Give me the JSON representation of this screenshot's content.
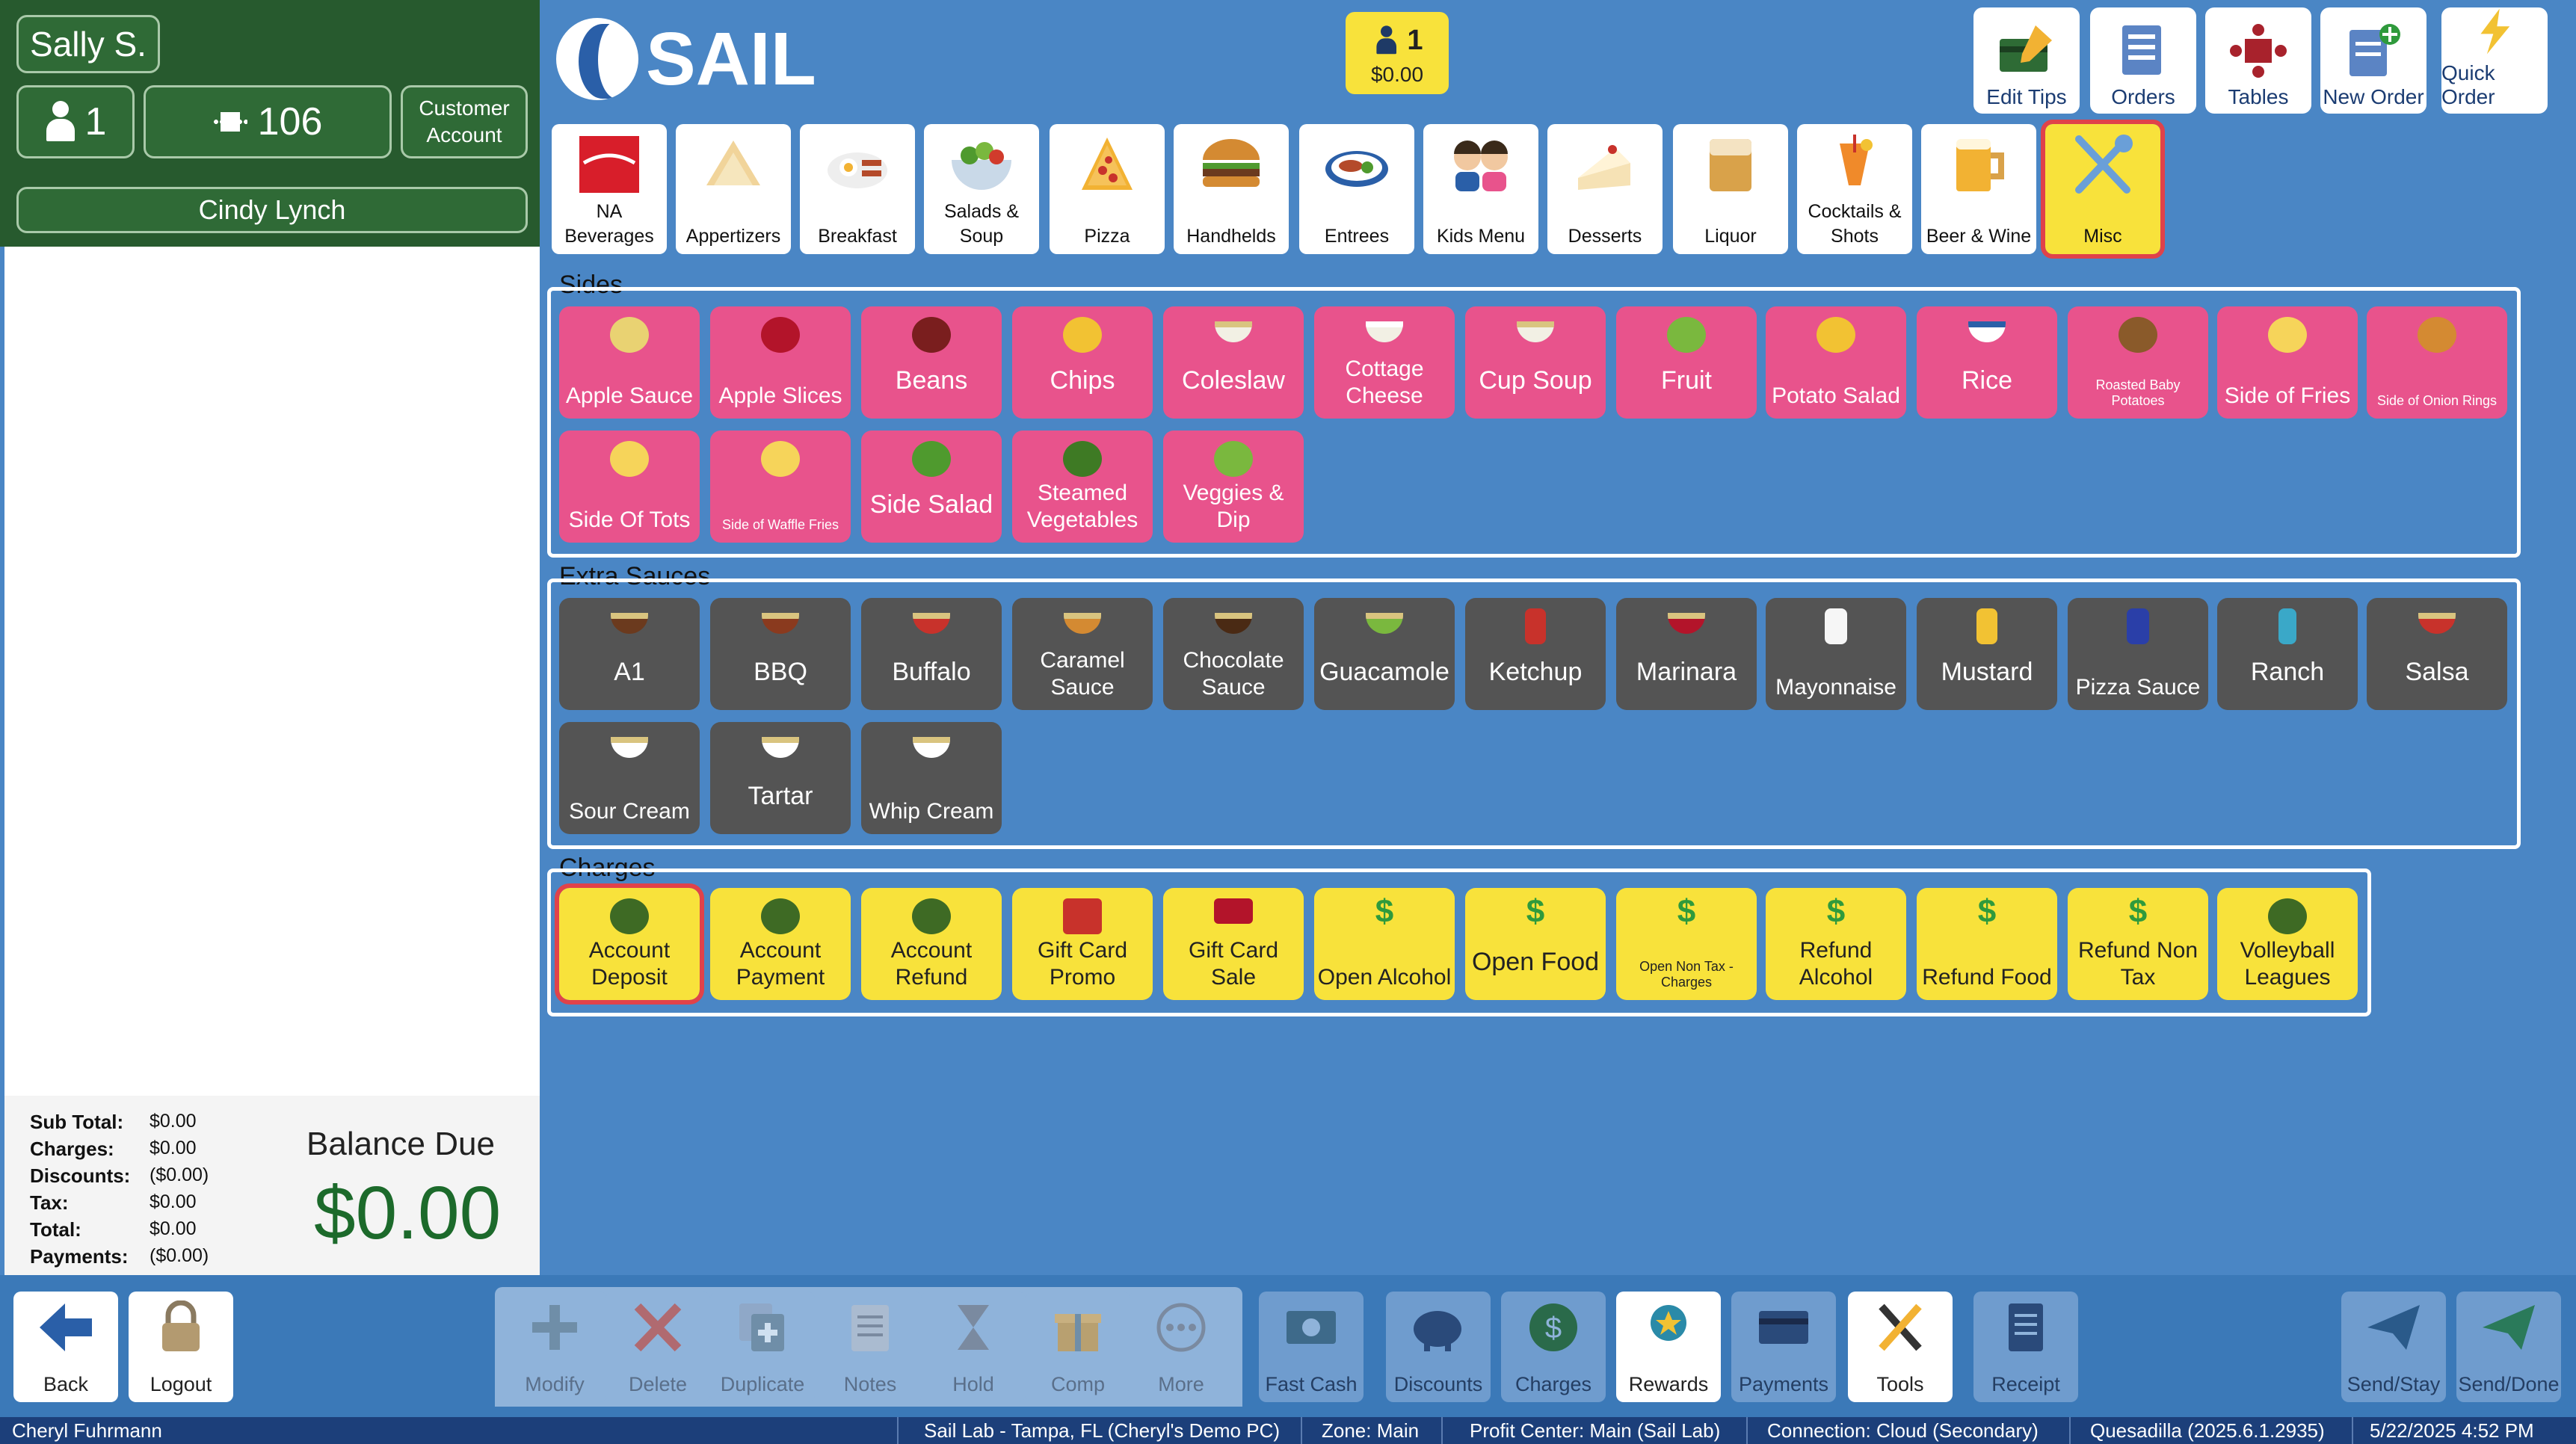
{
  "header": {
    "server_name": "Sally S.",
    "guest_count": "1",
    "table_number": "106",
    "customer_account_label": "Customer Account",
    "customer_name": "Cindy Lynch"
  },
  "totals": {
    "rows": [
      {
        "label": "Sub Total:",
        "value": "$0.00"
      },
      {
        "label": "Charges:",
        "value": "$0.00"
      },
      {
        "label": "Discounts:",
        "value": "($0.00)"
      },
      {
        "label": "Tax:",
        "value": "$0.00"
      },
      {
        "label": "Total:",
        "value": "$0.00"
      },
      {
        "label": "Payments:",
        "value": "($0.00)"
      }
    ],
    "balance_label": "Balance Due",
    "balance_value": "$0.00"
  },
  "logo": {
    "text": "SAIL"
  },
  "cover_badge": {
    "count": "1",
    "amount": "$0.00"
  },
  "top_actions": [
    "Edit Tips",
    "Orders",
    "Tables",
    "New Order",
    "Quick Order"
  ],
  "categories": [
    {
      "label": "NA Beverages",
      "icon": "soda-can-icon"
    },
    {
      "label": "Appertizers",
      "icon": "nachos-icon"
    },
    {
      "label": "Breakfast",
      "icon": "breakfast-plate-icon"
    },
    {
      "label": "Salads & Soup",
      "icon": "salad-bowl-icon"
    },
    {
      "label": "Pizza",
      "icon": "pizza-slice-icon"
    },
    {
      "label": "Handhelds",
      "icon": "burger-icon"
    },
    {
      "label": "Entrees",
      "icon": "entree-plate-icon"
    },
    {
      "label": "Kids Menu",
      "icon": "kids-icon"
    },
    {
      "label": "Desserts",
      "icon": "cake-slice-icon"
    },
    {
      "label": "Liquor",
      "icon": "whiskey-glass-icon"
    },
    {
      "label": "Cocktails & Shots",
      "icon": "cocktail-icon"
    },
    {
      "label": "Beer & Wine",
      "icon": "beer-mug-icon"
    },
    {
      "label": "Misc",
      "icon": "utensils-icon"
    }
  ],
  "sections": {
    "sides": {
      "title": "Sides",
      "items": [
        "Apple Sauce",
        "Apple Slices",
        "Beans",
        "Chips",
        "Coleslaw",
        "Cottage Cheese",
        "Cup Soup",
        "Fruit",
        "Potato Salad",
        "Rice",
        "Roasted Baby Potatoes",
        "Side of Fries",
        "Side of Onion Rings",
        "Side Of Tots",
        "Side of Waffle Fries",
        "Side Salad",
        "Steamed Vegetables",
        "Veggies & Dip"
      ]
    },
    "sauces": {
      "title": "Extra Sauces",
      "items": [
        "A1",
        "BBQ",
        "Buffalo",
        "Caramel Sauce",
        "Chocolate Sauce",
        "Guacamole",
        "Ketchup",
        "Marinara",
        "Mayonnaise",
        "Mustard",
        "Pizza Sauce",
        "Ranch",
        "Salsa",
        "Sour Cream",
        "Tartar",
        "Whip Cream"
      ]
    },
    "charges": {
      "title": "Charges",
      "items": [
        "Account Deposit",
        "Account Payment",
        "Account Refund",
        "Gift Card Promo",
        "Gift Card Sale",
        "Open Alcohol",
        "Open Food",
        "Open Non Tax - Charges",
        "Refund Alcohol",
        "Refund Food",
        "Refund Non Tax",
        "Volleyball Leagues"
      ]
    }
  },
  "bottom_toolbar": {
    "back": "Back",
    "logout": "Logout",
    "modify": "Modify",
    "delete": "Delete",
    "duplicate": "Duplicate",
    "notes": "Notes",
    "hold": "Hold",
    "comp": "Comp",
    "more": "More",
    "fast_cash": "Fast Cash",
    "discounts": "Discounts",
    "charges": "Charges",
    "rewards": "Rewards",
    "payments": "Payments",
    "tools": "Tools",
    "receipt": "Receipt",
    "send_stay": "Send/Stay",
    "send_done": "Send/Done"
  },
  "status_bar": {
    "user": "Cheryl Fuhrmann",
    "location": "Sail Lab - Tampa, FL (Cheryl's Demo PC)",
    "zone": "Zone: Main",
    "profit_center": "Profit Center: Main (Sail Lab)",
    "connection": "Connection: Cloud (Secondary)",
    "version": "Quesadilla (2025.6.1.2935)",
    "datetime": "5/22/2025 4:52 PM"
  },
  "colors": {
    "sides": "#e8538c",
    "sauces": "#545454",
    "charges": "#f8e23b",
    "selected_outline": "#e0424a",
    "header_green": "#275a2e"
  }
}
